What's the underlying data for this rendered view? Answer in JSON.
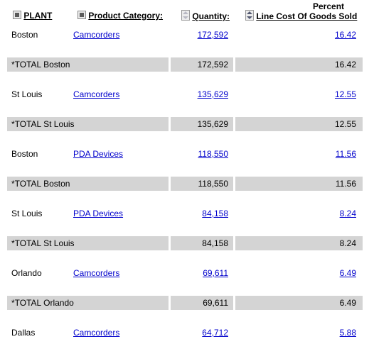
{
  "header": {
    "plant": "PLANT",
    "category": "Product Category:",
    "quantity": "Quantity:",
    "pct_top": "Percent",
    "pct_bottom": "Line Cost Of Goods Sold"
  },
  "rows": [
    {
      "type": "detail",
      "plant": "Boston",
      "category": "Camcorders",
      "quantity": "172,592",
      "percent": "16.42"
    },
    {
      "type": "total",
      "label": "*TOTAL Boston",
      "quantity": "172,592",
      "percent": "16.42"
    },
    {
      "type": "detail",
      "plant": "St Louis",
      "category": "Camcorders",
      "quantity": "135,629",
      "percent": "12.55"
    },
    {
      "type": "total",
      "label": "*TOTAL St Louis",
      "quantity": "135,629",
      "percent": "12.55"
    },
    {
      "type": "detail",
      "plant": "Boston",
      "category": "PDA Devices",
      "quantity": "118,550",
      "percent": "11.56"
    },
    {
      "type": "total",
      "label": "*TOTAL Boston",
      "quantity": "118,550",
      "percent": "11.56"
    },
    {
      "type": "detail",
      "plant": "St Louis",
      "category": "PDA Devices",
      "quantity": "84,158",
      "percent": "8.24"
    },
    {
      "type": "total",
      "label": "*TOTAL St Louis",
      "quantity": "84,158",
      "percent": "8.24"
    },
    {
      "type": "detail",
      "plant": "Orlando",
      "category": "Camcorders",
      "quantity": "69,611",
      "percent": "6.49"
    },
    {
      "type": "total",
      "label": "*TOTAL Orlando",
      "quantity": "69,611",
      "percent": "6.49"
    },
    {
      "type": "detail",
      "plant": "Dallas",
      "category": "Camcorders",
      "quantity": "64,712",
      "percent": "5.88"
    }
  ]
}
